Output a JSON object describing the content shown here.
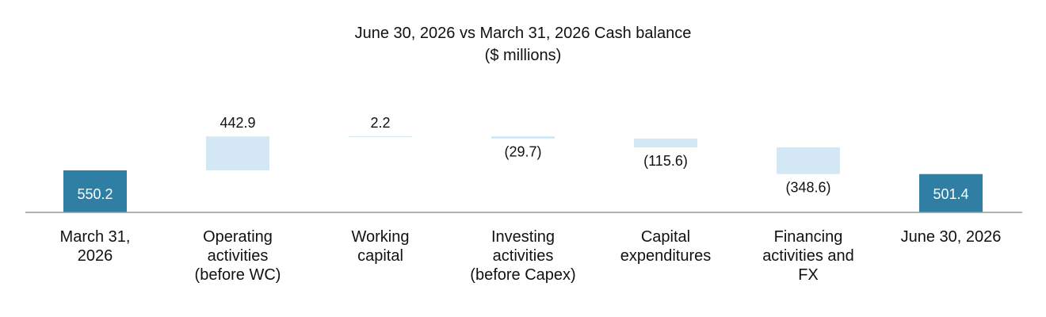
{
  "chart_data": {
    "type": "waterfall",
    "title": "June 30, 2026 vs March 31, 2026 Cash  balance",
    "subtitle": "($ millions)",
    "categories": [
      "March 31,\n2026",
      "Operating\nactivities\n(before WC)",
      "Working\ncapital",
      "Investing\nactivities\n(before Capex)",
      "Capital\nexpenditures",
      "Financing\nactivities and\nFX",
      "June 30, 2026"
    ],
    "values": [
      550.2,
      442.9,
      2.2,
      -29.7,
      -115.6,
      -348.6,
      501.4
    ],
    "value_labels": [
      "550.2",
      "442.9",
      "2.2",
      "(29.7)",
      "(115.6)",
      "(348.6)",
      "501.4"
    ],
    "total_color": "#2e7fa3",
    "change_color": "#d3e8f4"
  }
}
